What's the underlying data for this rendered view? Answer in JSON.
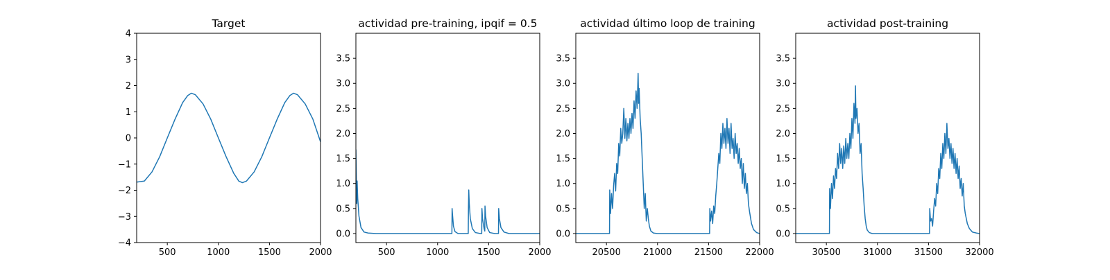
{
  "chart_data": [
    {
      "type": "line",
      "title": "Target",
      "xlim": [
        200,
        2000
      ],
      "ylim": [
        -4,
        4
      ],
      "xticks": [
        500,
        1000,
        1500,
        2000
      ],
      "yticks": [
        -4,
        -3,
        -2,
        -1,
        0,
        1,
        2,
        3,
        4
      ],
      "xtick_labels": [
        "500",
        "1000",
        "1500",
        "2000"
      ],
      "ytick_labels": [
        "−4",
        "−3",
        "−2",
        "−1",
        "0",
        "1",
        "2",
        "3",
        "4"
      ],
      "series": [
        {
          "color": "#1f77b4",
          "points": [
            [
              200,
              -1.69
            ],
            [
              275,
              -1.65
            ],
            [
              350,
              -1.3
            ],
            [
              425,
              -0.72
            ],
            [
              500,
              0.0
            ],
            [
              575,
              0.71
            ],
            [
              650,
              1.35
            ],
            [
              700,
              1.62
            ],
            [
              735,
              1.71
            ],
            [
              775,
              1.65
            ],
            [
              850,
              1.3
            ],
            [
              925,
              0.72
            ],
            [
              1000,
              0.0
            ],
            [
              1075,
              -0.71
            ],
            [
              1150,
              -1.35
            ],
            [
              1200,
              -1.65
            ],
            [
              1235,
              -1.71
            ],
            [
              1275,
              -1.65
            ],
            [
              1350,
              -1.3
            ],
            [
              1425,
              -0.72
            ],
            [
              1500,
              0.0
            ],
            [
              1575,
              0.71
            ],
            [
              1650,
              1.35
            ],
            [
              1700,
              1.62
            ],
            [
              1735,
              1.71
            ],
            [
              1775,
              1.65
            ],
            [
              1850,
              1.3
            ],
            [
              1925,
              0.72
            ],
            [
              2000,
              -0.15
            ]
          ]
        }
      ]
    },
    {
      "type": "line",
      "title": "actividad pre-training, ipqif = 0.5",
      "xlim": [
        200,
        2000
      ],
      "ylim": [
        -0.18,
        4.0
      ],
      "xticks": [
        500,
        1000,
        1500,
        2000
      ],
      "yticks": [
        0,
        0.5,
        1.0,
        1.5,
        2.0,
        2.5,
        3.0,
        3.5
      ],
      "xtick_labels": [
        "500",
        "1000",
        "1500",
        "2000"
      ],
      "ytick_labels": [
        "0.0",
        "0.5",
        "1.0",
        "1.5",
        "2.0",
        "2.5",
        "3.0",
        "3.5"
      ],
      "series": [
        {
          "color": "#1f77b4",
          "points": [
            [
              200,
              1.68
            ],
            [
              204,
              1.1
            ],
            [
              208,
              0.6
            ],
            [
              212,
              1.05
            ],
            [
              218,
              0.7
            ],
            [
              230,
              0.35
            ],
            [
              250,
              0.12
            ],
            [
              280,
              0.03
            ],
            [
              320,
              0.01
            ],
            [
              400,
              0.0
            ],
            [
              1140,
              0.0
            ],
            [
              1142,
              0.5
            ],
            [
              1146,
              0.38
            ],
            [
              1155,
              0.15
            ],
            [
              1170,
              0.04
            ],
            [
              1200,
              0.0
            ],
            [
              1300,
              0.0
            ],
            [
              1302,
              0.5
            ],
            [
              1305,
              0.87
            ],
            [
              1310,
              0.6
            ],
            [
              1320,
              0.3
            ],
            [
              1340,
              0.1
            ],
            [
              1370,
              0.02
            ],
            [
              1420,
              0.0
            ],
            [
              1432,
              0.0
            ],
            [
              1434,
              0.5
            ],
            [
              1440,
              0.3
            ],
            [
              1455,
              0.1
            ],
            [
              1462,
              0.05
            ],
            [
              1464,
              0.55
            ],
            [
              1470,
              0.35
            ],
            [
              1485,
              0.12
            ],
            [
              1510,
              0.02
            ],
            [
              1560,
              0.0
            ],
            [
              1596,
              0.0
            ],
            [
              1598,
              0.5
            ],
            [
              1605,
              0.3
            ],
            [
              1620,
              0.12
            ],
            [
              1650,
              0.03
            ],
            [
              1700,
              0.0
            ],
            [
              2000,
              0.0
            ]
          ]
        }
      ]
    },
    {
      "type": "line",
      "title": "actividad último loop de training",
      "xlim": [
        20200,
        22000
      ],
      "ylim": [
        -0.18,
        4.0
      ],
      "xticks": [
        20500,
        21000,
        21500,
        22000
      ],
      "yticks": [
        0,
        0.5,
        1.0,
        1.5,
        2.0,
        2.5,
        3.0,
        3.5
      ],
      "xtick_labels": [
        "20500",
        "21000",
        "21500",
        "22000"
      ],
      "ytick_labels": [
        "0.0",
        "0.5",
        "1.0",
        "1.5",
        "2.0",
        "2.5",
        "3.0",
        "3.5"
      ],
      "series": [
        {
          "color": "#1f77b4",
          "points": [
            [
              20200,
              0.0
            ],
            [
              20530,
              0.0
            ],
            [
              20532,
              0.87
            ],
            [
              20540,
              0.4
            ],
            [
              20550,
              0.8
            ],
            [
              20560,
              0.5
            ],
            [
              20570,
              0.95
            ],
            [
              20580,
              1.2
            ],
            [
              20590,
              0.85
            ],
            [
              20600,
              1.4
            ],
            [
              20610,
              1.2
            ],
            [
              20620,
              1.8
            ],
            [
              20630,
              1.55
            ],
            [
              20640,
              2.1
            ],
            [
              20650,
              1.8
            ],
            [
              20660,
              2.0
            ],
            [
              20670,
              2.5
            ],
            [
              20680,
              1.9
            ],
            [
              20690,
              2.3
            ],
            [
              20700,
              1.85
            ],
            [
              20710,
              2.2
            ],
            [
              20720,
              1.9
            ],
            [
              20730,
              2.3
            ],
            [
              20740,
              2.0
            ],
            [
              20750,
              2.4
            ],
            [
              20760,
              2.1
            ],
            [
              20770,
              2.65
            ],
            [
              20780,
              2.3
            ],
            [
              20790,
              2.85
            ],
            [
              20800,
              2.5
            ],
            [
              20810,
              3.2
            ],
            [
              20815,
              2.6
            ],
            [
              20820,
              2.9
            ],
            [
              20830,
              2.3
            ],
            [
              20840,
              2.0
            ],
            [
              20850,
              1.5
            ],
            [
              20860,
              1.0
            ],
            [
              20870,
              0.5
            ],
            [
              20880,
              0.8
            ],
            [
              20890,
              0.25
            ],
            [
              20900,
              0.5
            ],
            [
              20910,
              0.3
            ],
            [
              20920,
              0.15
            ],
            [
              20935,
              0.05
            ],
            [
              20960,
              0.01
            ],
            [
              21000,
              0.0
            ],
            [
              21510,
              0.0
            ],
            [
              21512,
              0.5
            ],
            [
              21520,
              0.25
            ],
            [
              21530,
              0.45
            ],
            [
              21540,
              0.2
            ],
            [
              21550,
              0.55
            ],
            [
              21560,
              0.4
            ],
            [
              21570,
              0.75
            ],
            [
              21580,
              1.0
            ],
            [
              21590,
              1.3
            ],
            [
              21600,
              1.6
            ],
            [
              21610,
              1.4
            ],
            [
              21620,
              2.0
            ],
            [
              21630,
              1.7
            ],
            [
              21640,
              2.2
            ],
            [
              21650,
              1.8
            ],
            [
              21660,
              2.1
            ],
            [
              21670,
              1.7
            ],
            [
              21680,
              2.3
            ],
            [
              21690,
              1.8
            ],
            [
              21700,
              2.1
            ],
            [
              21710,
              1.6
            ],
            [
              21720,
              2.2
            ],
            [
              21730,
              1.7
            ],
            [
              21740,
              1.9
            ],
            [
              21750,
              1.5
            ],
            [
              21760,
              2.0
            ],
            [
              21770,
              1.6
            ],
            [
              21780,
              1.8
            ],
            [
              21790,
              1.4
            ],
            [
              21800,
              1.7
            ],
            [
              21810,
              1.3
            ],
            [
              21820,
              1.5
            ],
            [
              21830,
              1.0
            ],
            [
              21840,
              1.4
            ],
            [
              21850,
              0.9
            ],
            [
              21860,
              1.2
            ],
            [
              21870,
              0.8
            ],
            [
              21880,
              1.0
            ],
            [
              21890,
              0.6
            ],
            [
              21900,
              0.45
            ],
            [
              21920,
              0.2
            ],
            [
              21940,
              0.08
            ],
            [
              21970,
              0.02
            ],
            [
              22000,
              0.0
            ]
          ]
        }
      ]
    },
    {
      "type": "line",
      "title": "actividad post-training",
      "xlim": [
        30200,
        32000
      ],
      "ylim": [
        -0.18,
        4.0
      ],
      "xticks": [
        30500,
        31000,
        31500,
        32000
      ],
      "yticks": [
        0,
        0.5,
        1.0,
        1.5,
        2.0,
        2.5,
        3.0,
        3.5
      ],
      "xtick_labels": [
        "30500",
        "31000",
        "31500",
        "32000"
      ],
      "ytick_labels": [
        "0.0",
        "0.5",
        "1.0",
        "1.5",
        "2.0",
        "2.5",
        "3.0",
        "3.5"
      ],
      "series": [
        {
          "color": "#1f77b4",
          "points": [
            [
              30200,
              0.0
            ],
            [
              30530,
              0.0
            ],
            [
              30532,
              0.9
            ],
            [
              30540,
              0.5
            ],
            [
              30550,
              1.0
            ],
            [
              30560,
              0.7
            ],
            [
              30570,
              1.15
            ],
            [
              30580,
              0.9
            ],
            [
              30590,
              1.3
            ],
            [
              30600,
              1.1
            ],
            [
              30610,
              1.6
            ],
            [
              30620,
              1.3
            ],
            [
              30630,
              1.8
            ],
            [
              30640,
              1.4
            ],
            [
              30650,
              1.7
            ],
            [
              30660,
              1.3
            ],
            [
              30670,
              1.75
            ],
            [
              30680,
              1.4
            ],
            [
              30690,
              1.9
            ],
            [
              30700,
              1.5
            ],
            [
              30710,
              1.8
            ],
            [
              30720,
              1.5
            ],
            [
              30730,
              2.0
            ],
            [
              30740,
              1.7
            ],
            [
              30750,
              2.3
            ],
            [
              30760,
              1.9
            ],
            [
              30770,
              2.6
            ],
            [
              30780,
              2.2
            ],
            [
              30785,
              2.95
            ],
            [
              30790,
              2.3
            ],
            [
              30800,
              2.5
            ],
            [
              30810,
              2.0
            ],
            [
              30820,
              2.2
            ],
            [
              30830,
              1.6
            ],
            [
              30840,
              1.8
            ],
            [
              30850,
              1.2
            ],
            [
              30860,
              0.9
            ],
            [
              30870,
              0.55
            ],
            [
              30880,
              0.3
            ],
            [
              30890,
              0.15
            ],
            [
              30900,
              0.07
            ],
            [
              30920,
              0.02
            ],
            [
              30950,
              0.0
            ],
            [
              31500,
              0.0
            ],
            [
              31510,
              0.0
            ],
            [
              31512,
              0.5
            ],
            [
              31520,
              0.25
            ],
            [
              31530,
              0.3
            ],
            [
              31540,
              0.15
            ],
            [
              31550,
              0.45
            ],
            [
              31560,
              0.7
            ],
            [
              31570,
              0.55
            ],
            [
              31580,
              1.0
            ],
            [
              31590,
              0.8
            ],
            [
              31600,
              1.3
            ],
            [
              31610,
              1.1
            ],
            [
              31620,
              1.6
            ],
            [
              31630,
              1.3
            ],
            [
              31640,
              1.8
            ],
            [
              31650,
              1.5
            ],
            [
              31660,
              2.0
            ],
            [
              31670,
              1.6
            ],
            [
              31680,
              2.2
            ],
            [
              31690,
              1.7
            ],
            [
              31700,
              1.9
            ],
            [
              31710,
              1.5
            ],
            [
              31720,
              1.8
            ],
            [
              31730,
              1.4
            ],
            [
              31740,
              1.7
            ],
            [
              31750,
              1.3
            ],
            [
              31760,
              1.6
            ],
            [
              31770,
              1.2
            ],
            [
              31780,
              1.5
            ],
            [
              31790,
              1.1
            ],
            [
              31800,
              1.35
            ],
            [
              31810,
              0.9
            ],
            [
              31820,
              1.1
            ],
            [
              31830,
              0.75
            ],
            [
              31840,
              1.0
            ],
            [
              31850,
              0.55
            ],
            [
              31860,
              0.4
            ],
            [
              31880,
              0.2
            ],
            [
              31900,
              0.1
            ],
            [
              31930,
              0.03
            ],
            [
              31970,
              0.01
            ],
            [
              32000,
              0.0
            ]
          ]
        }
      ]
    }
  ]
}
